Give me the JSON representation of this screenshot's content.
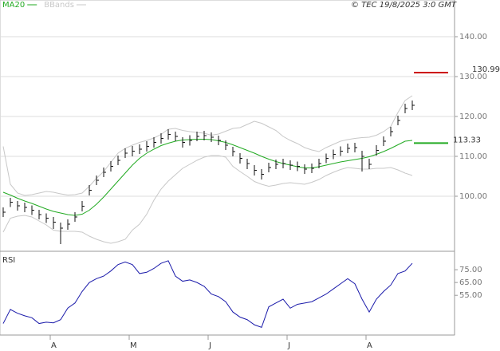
{
  "chart_data": [
    {
      "type": "ohlc",
      "source": "© TEC 19/8/2025 3:0 GMT",
      "ylim": [
        86.8,
        149.2
      ],
      "yticks": [
        {
          "value": 100,
          "label": "100.00"
        },
        {
          "value": 110,
          "label": "110.00"
        },
        {
          "value": 120,
          "label": "120.00"
        },
        {
          "value": 130,
          "label": "130.00"
        },
        {
          "value": 140,
          "label": "140.00"
        }
      ],
      "grid": true,
      "color": "#111111",
      "high": [
        97.2,
        99.6,
        98.8,
        98.4,
        97.7,
        96.6,
        95.7,
        94.8,
        93.4,
        94.2,
        96.0,
        98.8,
        102.8,
        105.2,
        107.2,
        108.8,
        110.2,
        112.0,
        112.6,
        113.0,
        113.8,
        114.8,
        115.8,
        116.8,
        116.2,
        114.8,
        115.3,
        116.2,
        116.4,
        116.0,
        115.2,
        114.0,
        112.4,
        110.8,
        109.4,
        107.8,
        106.8,
        108.4,
        109.2,
        109.4,
        109.0,
        108.7,
        108.0,
        108.2,
        109.4,
        110.7,
        111.7,
        112.5,
        113.2,
        113.4,
        111.4,
        109.4,
        112.8,
        115.0,
        117.4,
        120.2,
        123.2,
        124.0
      ],
      "low": [
        94.8,
        97.3,
        96.4,
        96.0,
        95.3,
        94.2,
        93.3,
        91.8,
        88.0,
        91.6,
        93.6,
        96.2,
        100.2,
        102.8,
        104.8,
        106.2,
        107.8,
        109.6,
        110.0,
        110.6,
        111.2,
        112.2,
        113.2,
        114.2,
        113.8,
        112.2,
        112.7,
        113.8,
        114.0,
        113.6,
        112.8,
        111.6,
        110.0,
        108.2,
        106.8,
        105.2,
        104.2,
        106.0,
        106.8,
        107.0,
        106.6,
        106.3,
        105.6,
        105.8,
        107.0,
        108.3,
        109.3,
        110.1,
        110.8,
        111.0,
        106.2,
        106.8,
        110.2,
        112.6,
        115.0,
        117.8,
        120.8,
        121.6
      ],
      "close": [
        96.0,
        98.5,
        97.6,
        97.2,
        96.5,
        95.4,
        94.5,
        93.5,
        92.0,
        93.0,
        94.8,
        97.5,
        101.5,
        104.0,
        106.0,
        107.5,
        109.0,
        110.8,
        111.3,
        111.8,
        112.5,
        113.5,
        114.5,
        115.5,
        115.0,
        113.5,
        114.0,
        115.0,
        115.2,
        114.8,
        114.0,
        112.8,
        111.2,
        109.5,
        108.2,
        106.5,
        105.5,
        107.2,
        108.0,
        108.2,
        107.8,
        107.5,
        106.8,
        107.0,
        108.2,
        109.5,
        110.5,
        111.3,
        112.0,
        112.2,
        110.0,
        108.0,
        111.5,
        113.8,
        116.2,
        119.0,
        122.0,
        122.8
      ],
      "series": [
        {
          "name": "MA20",
          "color": "#22aa22",
          "values": [
            101.0,
            100.3,
            99.5,
            98.8,
            98.2,
            97.5,
            96.8,
            96.2,
            95.8,
            95.4,
            95.2,
            95.5,
            96.5,
            98.0,
            99.8,
            101.8,
            103.8,
            105.8,
            107.8,
            109.5,
            110.8,
            111.8,
            112.7,
            113.3,
            113.8,
            114.1,
            114.2,
            114.3,
            114.3,
            114.2,
            113.9,
            113.5,
            112.9,
            112.2,
            111.5,
            110.8,
            110.0,
            109.3,
            108.7,
            108.2,
            107.8,
            107.4,
            107.1,
            107.1,
            107.4,
            107.8,
            108.2,
            108.6,
            108.9,
            109.2,
            109.5,
            109.9,
            110.5,
            111.2,
            112.0,
            112.9,
            113.8,
            114.0
          ]
        },
        {
          "name": "BBands",
          "color": "#c8c8c8",
          "upper": [
            112.5,
            103,
            100.8,
            100.2,
            100.4,
            100.8,
            101.2,
            101.0,
            100.6,
            100.3,
            100.4,
            100.8,
            102.5,
            104.5,
            106.2,
            108.5,
            110.8,
            112.0,
            112.8,
            113.5,
            114.0,
            114.6,
            115.5,
            116.8,
            117.0,
            116.5,
            116.2,
            116.0,
            115.8,
            115.3,
            115.6,
            116.3,
            117.0,
            117.2,
            118.0,
            118.8,
            118.3,
            117.4,
            116.5,
            115.0,
            114.0,
            113.2,
            112.2,
            111.6,
            111.2,
            112.2,
            113.0,
            113.8,
            114.2,
            114.5,
            114.7,
            114.8,
            115.3,
            116.2,
            117.5,
            121.0,
            124.0,
            125.2
          ],
          "lower": [
            91.0,
            94.5,
            95.0,
            95.2,
            94.8,
            93.8,
            92.8,
            91.5,
            91.2,
            91.2,
            91.2,
            91.0,
            90.0,
            89.2,
            88.6,
            88.2,
            88.6,
            89.2,
            91.5,
            93.0,
            95.5,
            99.0,
            101.8,
            103.8,
            105.4,
            107.0,
            108.0,
            109.0,
            109.8,
            110.2,
            110.2,
            109.8,
            107.5,
            106.2,
            105.0,
            103.7,
            103.0,
            102.5,
            102.8,
            103.2,
            103.4,
            103.2,
            103.0,
            103.5,
            104.2,
            105.2,
            106.0,
            106.7,
            107.2,
            107.0,
            106.8,
            106.8,
            107.0,
            107.0,
            107.2,
            106.6,
            105.8,
            105.2
          ]
        }
      ],
      "markers": [
        {
          "value": 130.99,
          "color": "#cc0000"
        },
        {
          "value": 113.33,
          "color": "#22aa22"
        }
      ]
    },
    {
      "type": "line",
      "title": "RSI",
      "ylim": [
        24,
        87.5
      ],
      "yticks": [
        {
          "value": 55,
          "label": "55.00"
        },
        {
          "value": 65,
          "label": "65.00"
        },
        {
          "value": 75,
          "label": "75.00"
        }
      ],
      "categories": [
        null,
        null,
        null,
        null,
        null,
        null,
        null,
        "A",
        null,
        null,
        null,
        null,
        null,
        null,
        null,
        null,
        null,
        null,
        "M",
        null,
        null,
        null,
        null,
        null,
        null,
        null,
        null,
        null,
        null,
        "J",
        null,
        null,
        null,
        null,
        null,
        null,
        null,
        null,
        null,
        null,
        "J",
        null,
        null,
        null,
        null,
        null,
        null,
        null,
        null,
        null,
        null,
        "A",
        null,
        null,
        null,
        null,
        null,
        null
      ],
      "series": [
        {
          "name": "RSI",
          "color": "#1a1aaa",
          "values": [
            33,
            44,
            41,
            39,
            37.5,
            33,
            34,
            33.5,
            36,
            45,
            49,
            58,
            65,
            68,
            70,
            74,
            79,
            81,
            79,
            72,
            73,
            76,
            80,
            82,
            70,
            66,
            67,
            65,
            62,
            56,
            54,
            50,
            42,
            38,
            36,
            32,
            30,
            46,
            49,
            52,
            45,
            48,
            49,
            50,
            53,
            56,
            60,
            64,
            68,
            64,
            52,
            42,
            52,
            58,
            63,
            72,
            74,
            80
          ]
        }
      ]
    }
  ]
}
